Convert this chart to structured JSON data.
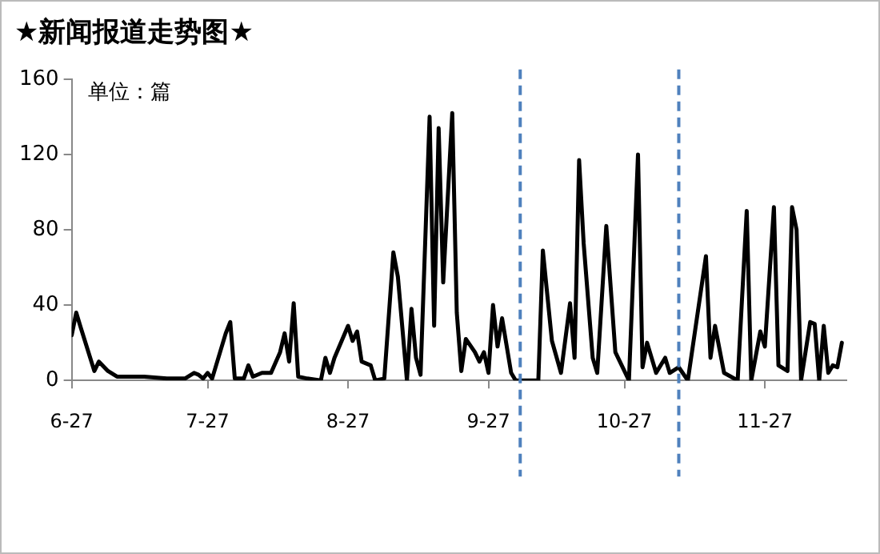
{
  "chart_data": {
    "type": "line",
    "title": "★新闻报道走势图★",
    "annotations": [
      "单位：篇"
    ],
    "x": [
      "--06-27",
      "--06-28",
      "--06-29",
      "--07-02",
      "--07-03",
      "--07-05",
      "--07-07",
      "--07-13",
      "--07-18",
      "--07-22",
      "--07-24",
      "--07-25",
      "--07-26",
      "--07-27",
      "--07-28",
      "--07-31",
      "--08-01",
      "--08-02",
      "--08-04",
      "--08-05",
      "--08-06",
      "--08-08",
      "--08-10",
      "--08-12",
      "--08-13",
      "--08-14",
      "--08-15",
      "--08-16",
      "--08-18",
      "--08-21",
      "--08-22",
      "--08-23",
      "--08-24",
      "--08-27",
      "--08-28",
      "--08-29",
      "--08-30",
      "--09-01",
      "--09-02",
      "--09-04",
      "--09-06",
      "--09-07",
      "--09-09",
      "--09-10",
      "--09-11",
      "--09-12",
      "--09-14",
      "--09-15",
      "--09-16",
      "--09-17",
      "--09-19",
      "--09-20",
      "--09-21",
      "--09-22",
      "--09-24",
      "--09-25",
      "--09-26",
      "--09-27",
      "--09-28",
      "--09-29",
      "--09-30",
      "--10-02",
      "--10-03",
      "--10-08",
      "--10-09",
      "--10-11",
      "--10-13",
      "--10-15",
      "--10-16",
      "--10-17",
      "--10-18",
      "--10-20",
      "--10-21",
      "--10-23",
      "--10-25",
      "--10-27",
      "--10-28",
      "--10-30",
      "--10-31",
      "--11-01",
      "--11-03",
      "--11-05",
      "--11-06",
      "--11-08",
      "--11-10",
      "--11-14",
      "--11-15",
      "--11-16",
      "--11-18",
      "--11-21",
      "--11-23",
      "--11-24",
      "--11-26",
      "--11-27",
      "--11-29",
      "--11-30",
      "--12-02",
      "--12-03",
      "--12-04",
      "--12-05",
      "--12-07",
      "--12-08",
      "--12-09",
      "--12-10",
      "--12-11",
      "--12-12",
      "--12-13",
      "--12-14"
    ],
    "series": [
      {
        "color": "#000000",
        "values": [
          24,
          36,
          28,
          5,
          10,
          5,
          2,
          2,
          1,
          1,
          4,
          3,
          1,
          4,
          1,
          25,
          31,
          1,
          1,
          8,
          2,
          4,
          4,
          15,
          25,
          10,
          41,
          2,
          1,
          0,
          12,
          4,
          12,
          29,
          21,
          26,
          10,
          8,
          0,
          1,
          68,
          55,
          0,
          38,
          12,
          3,
          140,
          29,
          134,
          52,
          142,
          36,
          5,
          22,
          15,
          10,
          15,
          4,
          40,
          18,
          33,
          4,
          0,
          0,
          69,
          21,
          4,
          41,
          12,
          117,
          73,
          12,
          4,
          82,
          15,
          5,
          0,
          120,
          7,
          20,
          4,
          12,
          4,
          7,
          0,
          66,
          12,
          29,
          4,
          0,
          90,
          0,
          26,
          18,
          92,
          8,
          5,
          92,
          80,
          0,
          31,
          30,
          0,
          29,
          4,
          8,
          7,
          20
        ]
      }
    ],
    "xlim": [
      "--06-27",
      "--12-15"
    ],
    "xticks": [
      {
        "value": "--06-27",
        "label": "6-27"
      },
      {
        "value": "--07-27",
        "label": "7-27"
      },
      {
        "value": "--08-27",
        "label": "8-27"
      },
      {
        "value": "--09-27",
        "label": "9-27"
      },
      {
        "value": "--10-27",
        "label": "10-27"
      },
      {
        "value": "--11-27",
        "label": "11-27"
      }
    ],
    "ylim": [
      0,
      160
    ],
    "yticks": [
      0,
      40,
      80,
      120,
      160
    ],
    "ref_lines": [
      {
        "axis": "x",
        "value": "--10-04",
        "color": "#4f81bd",
        "line_style": "dashed"
      },
      {
        "axis": "x",
        "value": "--11-08",
        "color": "#4f81bd",
        "line_style": "dashed"
      }
    ],
    "grid": false,
    "legend": false,
    "marker": "none",
    "line_style": "solid"
  }
}
